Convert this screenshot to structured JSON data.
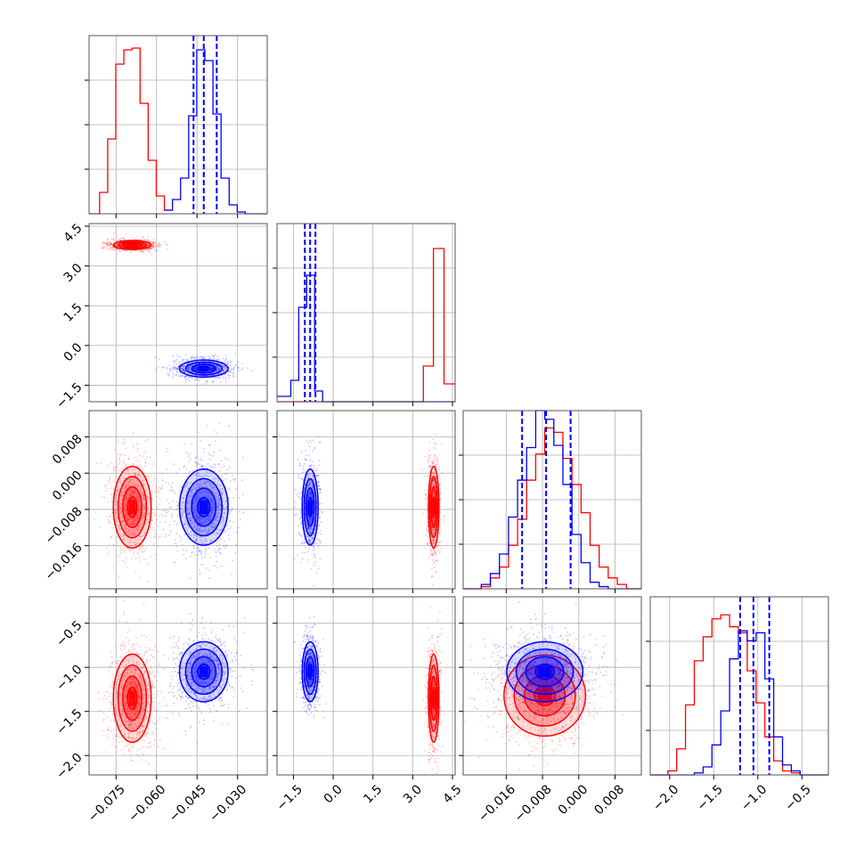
{
  "chart_data": {
    "type": "corner",
    "title": "",
    "grid": true,
    "legend": "none",
    "series": [
      {
        "color": "#ff0000"
      },
      {
        "color": "#0000ff"
      }
    ],
    "axes": [
      {
        "range": [
          -0.085,
          -0.019
        ],
        "ticks": [
          -0.075,
          -0.06,
          -0.045,
          -0.03
        ],
        "tick_labels": [
          "−0.075",
          "−0.060",
          "−0.045",
          "−0.030"
        ]
      },
      {
        "range": [
          -2.12,
          4.6
        ],
        "ticks": [
          -1.5,
          0.0,
          1.5,
          3.0,
          4.5
        ],
        "tick_labels": [
          "−1.5",
          "0.0",
          "1.5",
          "3.0",
          "4.5"
        ]
      },
      {
        "range": [
          -0.0255,
          0.0138
        ],
        "ticks": [
          -0.016,
          -0.008,
          0.0,
          0.008
        ],
        "tick_labels": [
          "−0.016",
          "−0.008",
          "0.000",
          "0.008"
        ]
      },
      {
        "range": [
          -2.22,
          -0.2
        ],
        "ticks": [
          -2.0,
          -1.5,
          -1.0,
          -0.5
        ],
        "tick_labels": [
          "−2.0",
          "−1.5",
          "−1.0",
          "−0.5"
        ]
      }
    ],
    "marginals": [
      {
        "quantiles_blue": [
          -0.0463,
          -0.0425,
          -0.0377
        ],
        "red": {
          "edges": [
            -0.085,
            -0.0811,
            -0.0781,
            -0.0751,
            -0.0721,
            -0.0691,
            -0.0661,
            -0.0631,
            -0.0601,
            -0.0571,
            -0.0541
          ],
          "counts": [
            0.0,
            0.12,
            0.42,
            0.84,
            0.92,
            0.93,
            0.62,
            0.3,
            0.1,
            0.02
          ]
        },
        "blue": {
          "edges": [
            -0.0571,
            -0.0541,
            -0.0511,
            -0.0481,
            -0.0451,
            -0.0421,
            -0.0391,
            -0.0361,
            -0.0331,
            -0.0301,
            -0.0271,
            -0.019
          ],
          "counts": [
            0.02,
            0.08,
            0.2,
            0.55,
            0.92,
            0.86,
            0.56,
            0.2,
            0.05,
            0.01,
            0.0
          ]
        },
        "ylim": [
          0,
          1.0
        ]
      },
      {
        "quantiles_blue": [
          -1.07,
          -0.87,
          -0.67
        ],
        "red": {
          "edges": [
            -2.12,
            3.4,
            3.78,
            4.18,
            4.6
          ],
          "counts": [
            0.0,
            0.2,
            0.86,
            0.1
          ]
        },
        "blue": {
          "edges": [
            -2.12,
            -1.6,
            -1.3,
            -1.0,
            -0.7,
            -0.4,
            4.6
          ],
          "counts": [
            0.03,
            0.12,
            0.53,
            0.71,
            0.06,
            0.0
          ]
        },
        "ylim": [
          0,
          1.0
        ]
      },
      {
        "quantiles_blue": [
          -0.0125,
          -0.0072,
          -0.0018
        ],
        "red": {
          "edges": [
            -0.0255,
            -0.0215,
            -0.0195,
            -0.0175,
            -0.0155,
            -0.0135,
            -0.0115,
            -0.0095,
            -0.0075,
            -0.0055,
            -0.0035,
            -0.0015,
            0.0005,
            0.0025,
            0.0045,
            0.0065,
            0.0085,
            0.0105,
            0.0138
          ],
          "counts": [
            0.0,
            0.01,
            0.05,
            0.1,
            0.2,
            0.32,
            0.5,
            0.62,
            0.74,
            0.72,
            0.6,
            0.48,
            0.35,
            0.2,
            0.1,
            0.05,
            0.02,
            0.0
          ]
        },
        "blue": {
          "edges": [
            -0.0255,
            -0.0215,
            -0.0195,
            -0.0175,
            -0.0155,
            -0.0135,
            -0.0115,
            -0.0095,
            -0.0075,
            -0.0055,
            -0.0035,
            -0.0015,
            0.0005,
            0.0025,
            0.0045,
            0.0065,
            0.0138
          ],
          "counts": [
            0.0,
            0.02,
            0.07,
            0.16,
            0.33,
            0.5,
            0.65,
            0.82,
            0.78,
            0.66,
            0.48,
            0.25,
            0.12,
            0.03,
            0.01,
            0.0
          ]
        },
        "ylim": [
          0,
          0.82
        ]
      },
      {
        "quantiles_blue": [
          -1.2,
          -1.05,
          -0.87
        ],
        "red": {
          "edges": [
            -2.22,
            -2.02,
            -1.92,
            -1.82,
            -1.72,
            -1.62,
            -1.52,
            -1.42,
            -1.32,
            -1.22,
            -1.12,
            -1.02,
            -0.92,
            -0.82,
            -0.72,
            -0.62,
            -0.52,
            -0.42,
            -0.2
          ],
          "counts": [
            0.0,
            0.02,
            0.13,
            0.35,
            0.57,
            0.69,
            0.78,
            0.8,
            0.74,
            0.71,
            0.52,
            0.36,
            0.19,
            0.07,
            0.02,
            0.01,
            0.0,
            0.0
          ]
        },
        "blue": {
          "edges": [
            -2.22,
            -1.72,
            -1.62,
            -1.52,
            -1.42,
            -1.32,
            -1.22,
            -1.12,
            -1.02,
            -0.92,
            -0.82,
            -0.72,
            -0.62,
            -0.52,
            -0.2
          ],
          "counts": [
            0.0,
            0.01,
            0.04,
            0.15,
            0.32,
            0.58,
            0.72,
            0.67,
            0.71,
            0.48,
            0.19,
            0.05,
            0.02,
            0.0
          ]
        },
        "ylim": [
          0,
          0.89
        ]
      }
    ],
    "blobs": [
      {
        "row": 1,
        "col": 0,
        "series": 0,
        "center": [
          -0.069,
          3.79
        ],
        "sd": [
          0.0035,
          0.085
        ],
        "n": 900
      },
      {
        "row": 1,
        "col": 0,
        "series": 1,
        "center": [
          -0.0425,
          -0.87
        ],
        "sd": [
          0.0045,
          0.16
        ],
        "n": 900
      },
      {
        "row": 2,
        "col": 0,
        "series": 0,
        "center": [
          -0.069,
          -0.0075
        ],
        "sd": [
          0.0035,
          0.0045
        ],
        "n": 900
      },
      {
        "row": 2,
        "col": 0,
        "series": 1,
        "center": [
          -0.0425,
          -0.0075
        ],
        "sd": [
          0.0045,
          0.0042
        ],
        "n": 900
      },
      {
        "row": 2,
        "col": 1,
        "series": 0,
        "center": [
          3.79,
          -0.0075
        ],
        "sd": [
          0.1,
          0.0045
        ],
        "n": 700
      },
      {
        "row": 2,
        "col": 1,
        "series": 1,
        "center": [
          -0.87,
          -0.0075
        ],
        "sd": [
          0.15,
          0.0042
        ],
        "n": 700
      },
      {
        "row": 3,
        "col": 0,
        "series": 0,
        "center": [
          -0.069,
          -1.35
        ],
        "sd": [
          0.0035,
          0.25
        ],
        "n": 900
      },
      {
        "row": 3,
        "col": 0,
        "series": 1,
        "center": [
          -0.0425,
          -1.05
        ],
        "sd": [
          0.0045,
          0.17
        ],
        "n": 900
      },
      {
        "row": 3,
        "col": 1,
        "series": 0,
        "center": [
          3.79,
          -1.35
        ],
        "sd": [
          0.1,
          0.25
        ],
        "n": 700
      },
      {
        "row": 3,
        "col": 1,
        "series": 1,
        "center": [
          -0.87,
          -1.05
        ],
        "sd": [
          0.15,
          0.17
        ],
        "n": 700
      },
      {
        "row": 3,
        "col": 2,
        "series": 0,
        "center": [
          -0.0075,
          -1.32
        ],
        "sd": [
          0.0045,
          0.23
        ],
        "n": 900
      },
      {
        "row": 3,
        "col": 2,
        "series": 1,
        "center": [
          -0.0075,
          -1.05
        ],
        "sd": [
          0.0042,
          0.17
        ],
        "n": 900
      }
    ]
  }
}
